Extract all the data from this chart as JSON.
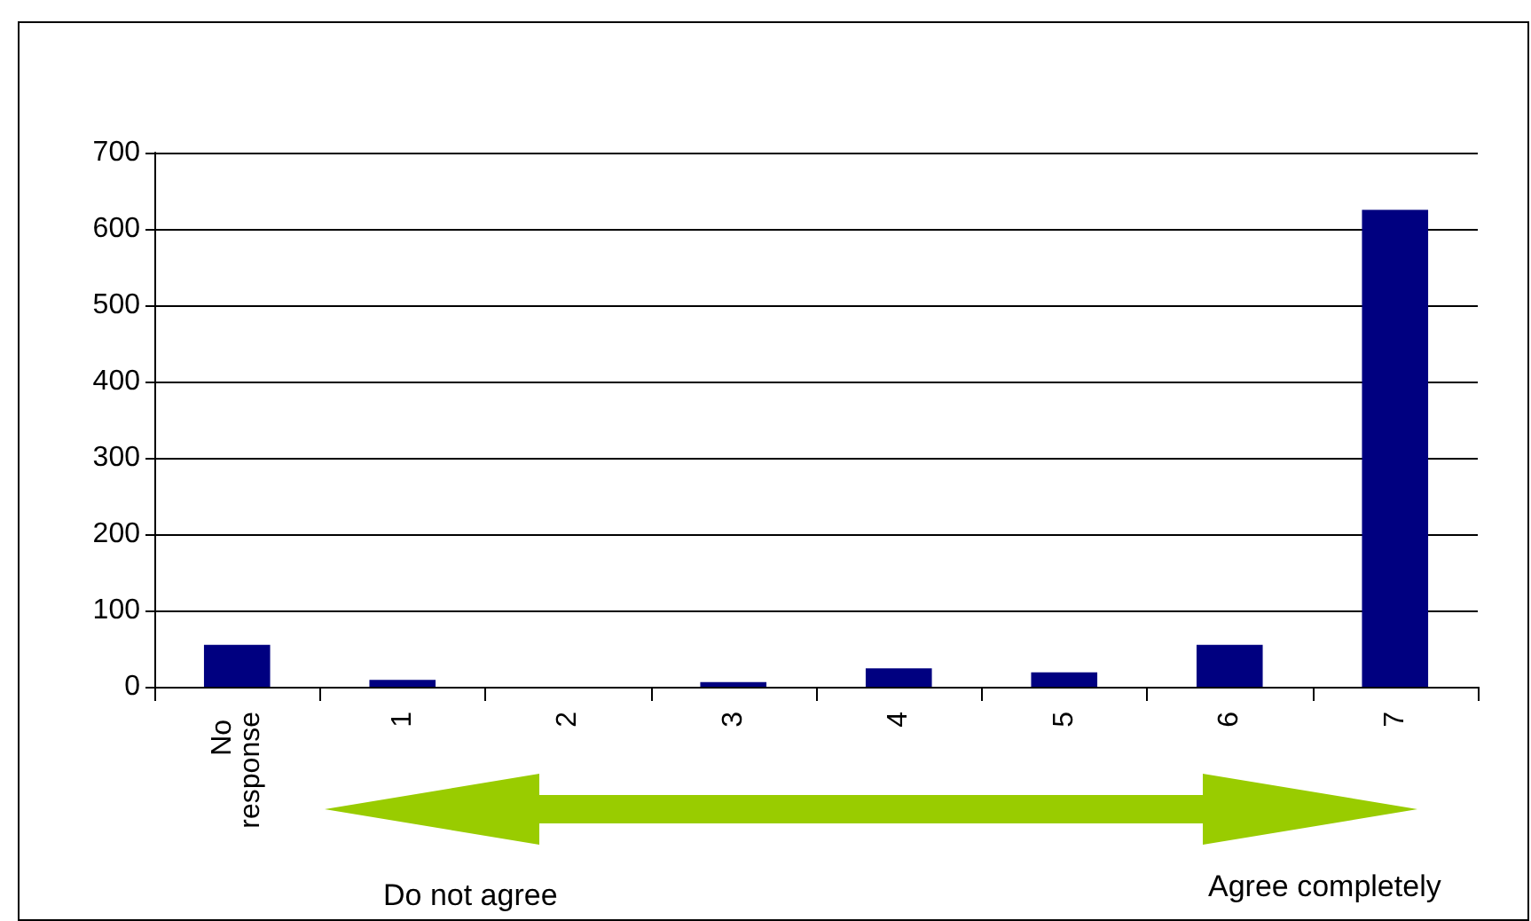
{
  "chart_data": {
    "type": "bar",
    "categories": [
      "No response",
      "1",
      "2",
      "3",
      "4",
      "5",
      "6",
      "7"
    ],
    "values": [
      55,
      9,
      0,
      6,
      24,
      19,
      55,
      625
    ],
    "color": "#000080",
    "ylim": [
      0,
      700
    ],
    "yticks": [
      0,
      100,
      200,
      300,
      400,
      500,
      600,
      700
    ],
    "grid": "y",
    "annotations": [
      "Do not agree",
      "Agree completely"
    ]
  }
}
